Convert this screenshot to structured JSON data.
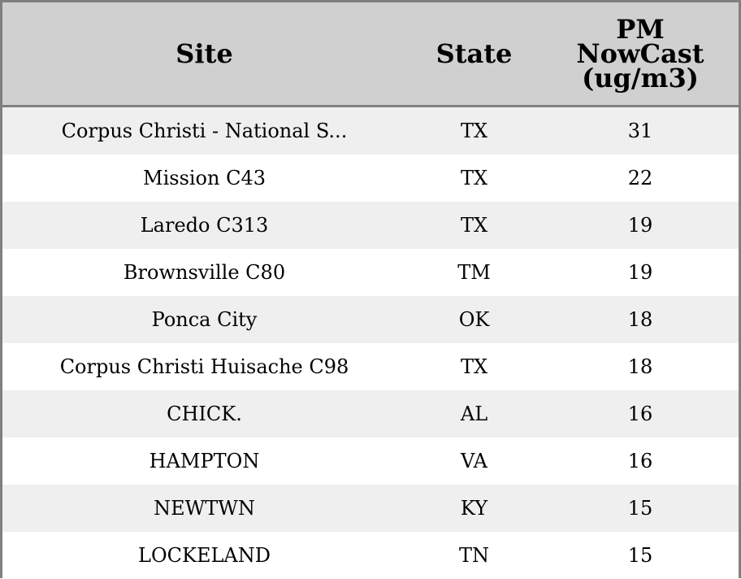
{
  "table": {
    "header": [
      "Site",
      "State",
      "PM NowCast (ug/m3)"
    ],
    "rows": [
      [
        "Corpus Christi - National S...",
        "TX",
        31
      ],
      [
        "Mission C43",
        "TX",
        22
      ],
      [
        "Laredo C313",
        "TX",
        19
      ],
      [
        "Brownsville C80",
        "TM",
        19
      ],
      [
        "Ponca City",
        "OK",
        18
      ],
      [
        "Corpus Christi Huisache C98",
        "TX",
        18
      ],
      [
        "CHICK.",
        "AL",
        16
      ],
      [
        "HAMPTON",
        "VA",
        16
      ],
      [
        "NEWTWN",
        "KY",
        15
      ],
      [
        "LOCKELAND",
        "TN",
        15
      ]
    ]
  }
}
